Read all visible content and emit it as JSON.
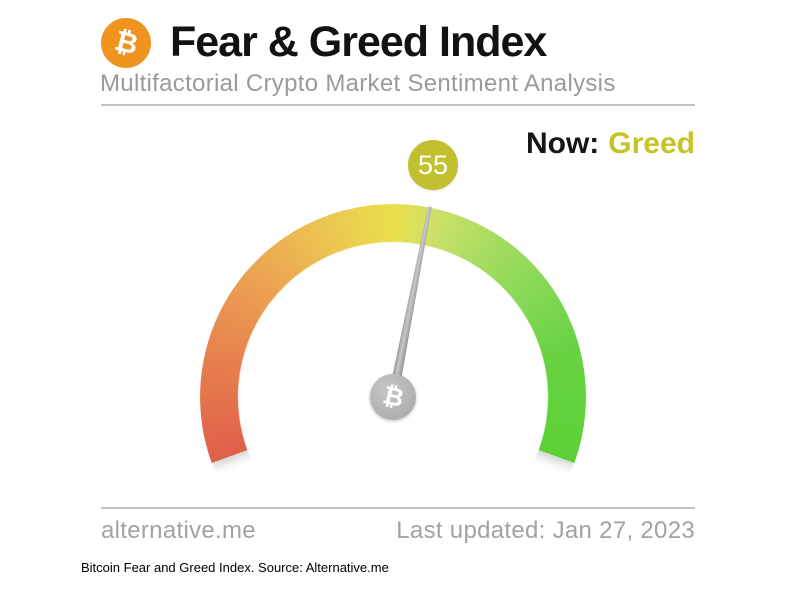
{
  "header": {
    "logo_icon": "bitcoin-icon",
    "logo_glyph": "₿",
    "logo_color": "#f0931f",
    "title": "Fear & Greed Index",
    "subtitle": "Multifactorial Crypto Market Sentiment Analysis"
  },
  "status": {
    "label": "Now:",
    "value": "Greed",
    "value_color": "#c5c326"
  },
  "chart_data": {
    "type": "gauge",
    "title": "Fear & Greed Index",
    "value": 55,
    "min": 0,
    "max": 100,
    "classification": "Greed",
    "badge_color": "#c1c02f",
    "sweep_degrees": 220,
    "needle_color": "#a9a9a9",
    "hub_icon": "bitcoin-icon",
    "hub_glyph": "₿",
    "scale_colors": [
      {
        "pos": 0.0,
        "color": "#e05f49"
      },
      {
        "pos": 0.14,
        "color": "#e67f4e"
      },
      {
        "pos": 0.25,
        "color": "#eb9b51"
      },
      {
        "pos": 0.39,
        "color": "#ecc252"
      },
      {
        "pos": 0.5,
        "color": "#e9e04b"
      },
      {
        "pos": 0.56,
        "color": "#cfe069"
      },
      {
        "pos": 0.65,
        "color": "#a5dc60"
      },
      {
        "pos": 0.73,
        "color": "#8ad958"
      },
      {
        "pos": 0.84,
        "color": "#68d243"
      },
      {
        "pos": 1.0,
        "color": "#5bd136"
      }
    ]
  },
  "footer": {
    "site": "alternative.me",
    "last_updated": "Last updated: Jan 27, 2023"
  },
  "caption": "Bitcoin Fear and Greed Index. Source: Alternative.me"
}
